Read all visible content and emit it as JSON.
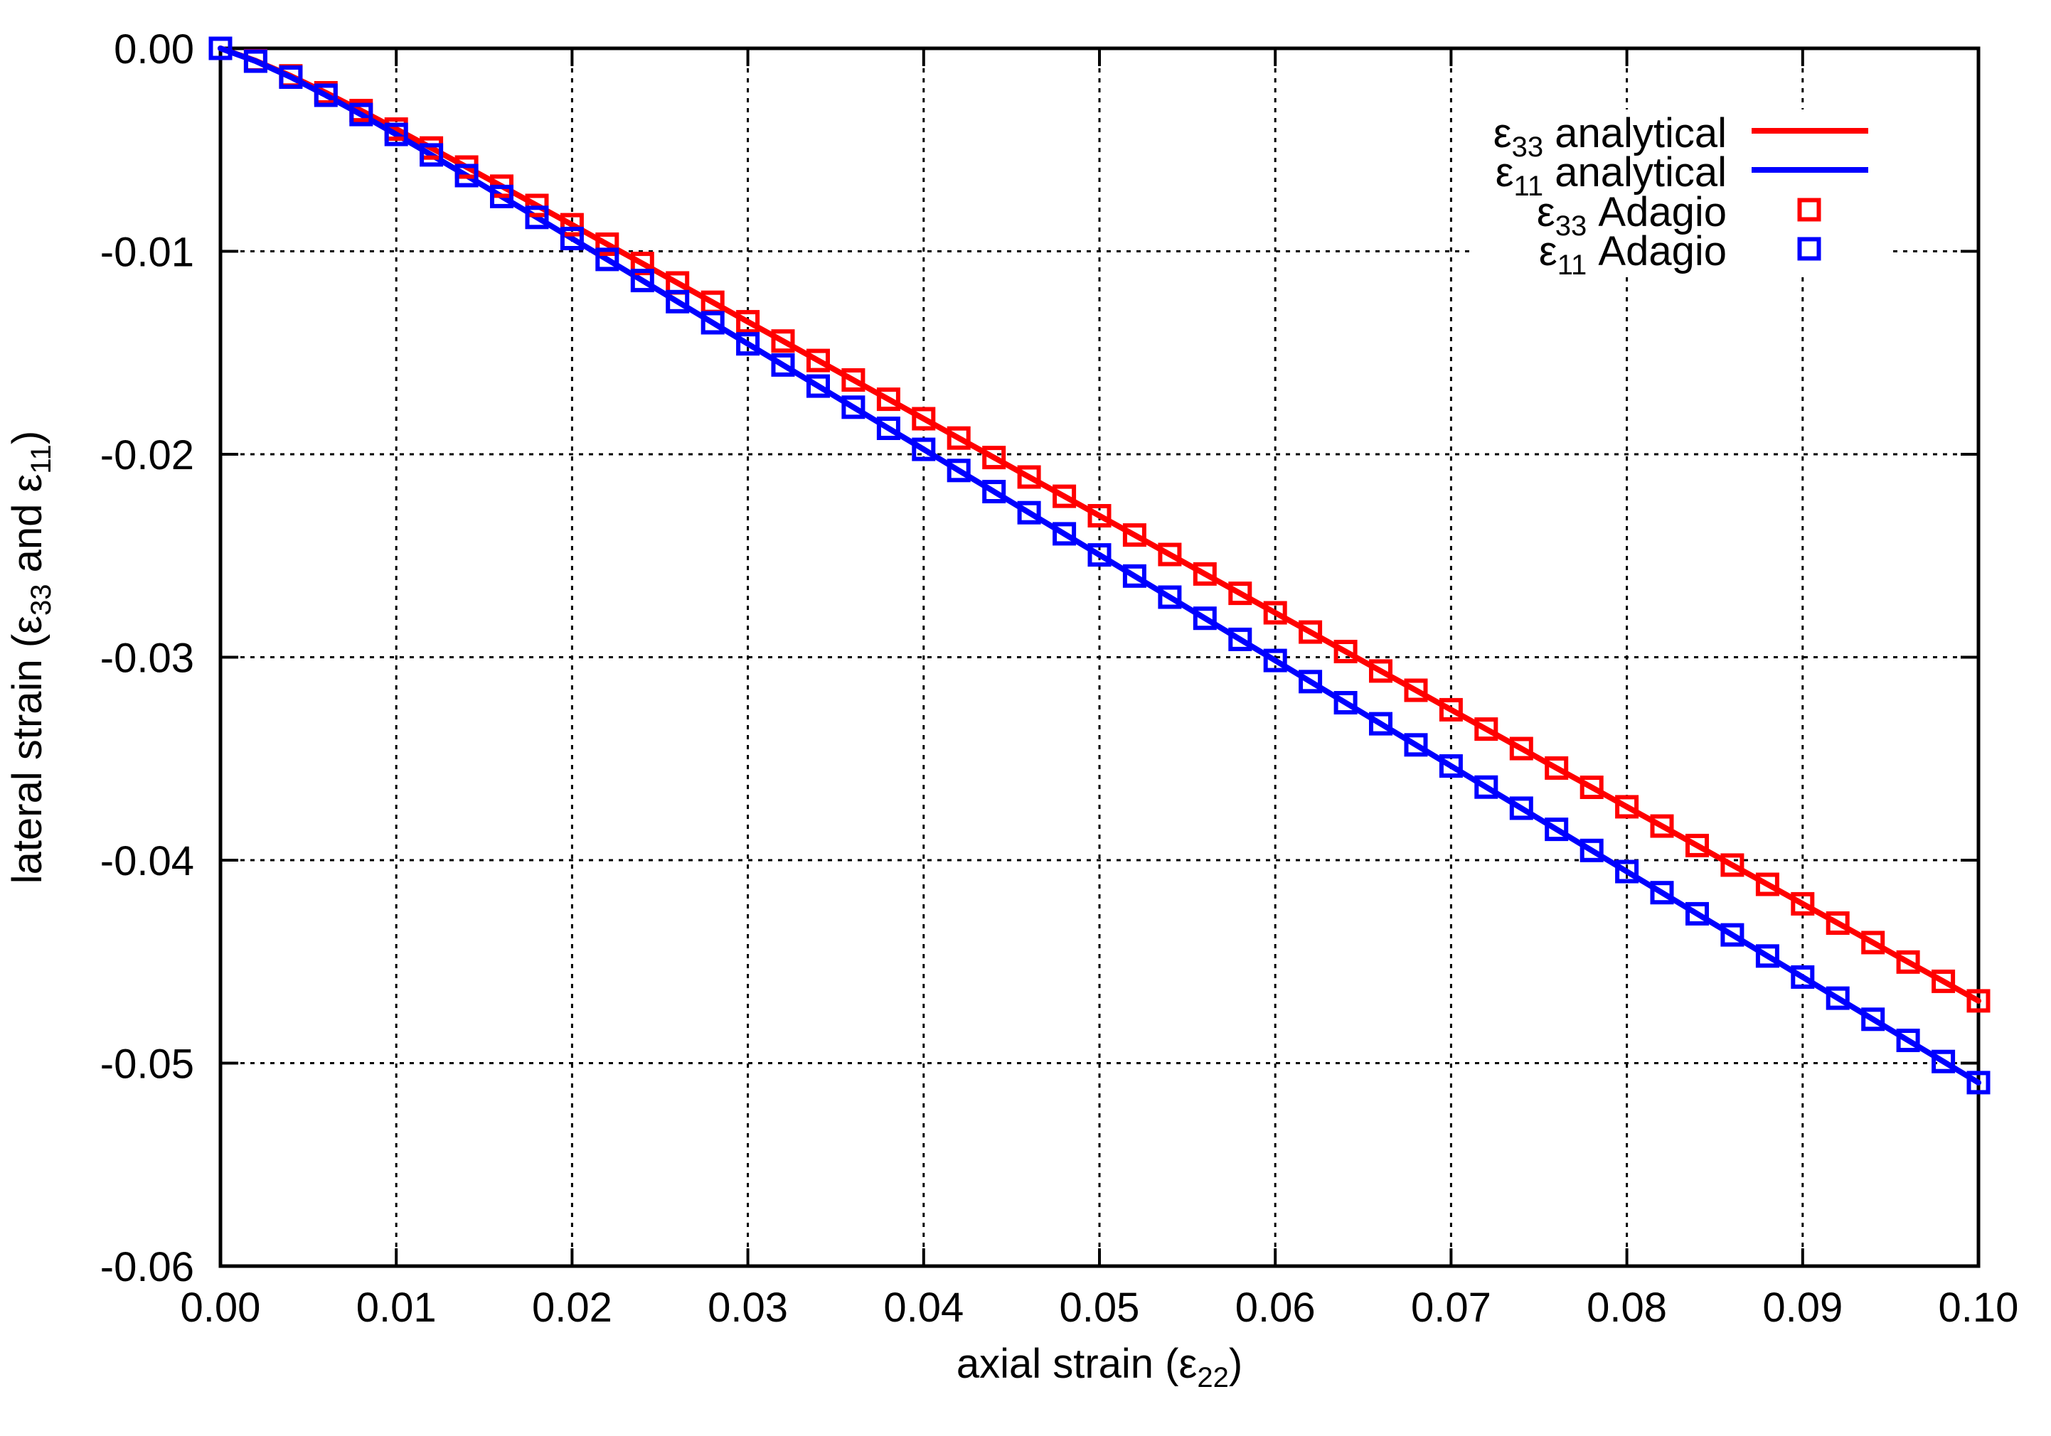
{
  "figure": {
    "background": "#ffffff",
    "text_color": "#000000",
    "grid_color": "#000000"
  },
  "chart_data": {
    "type": "line",
    "title": "",
    "xlabel": "axial strain (ε22)",
    "ylabel": "lateral strain (ε33 and ε11)",
    "xlabel_parts": [
      {
        "t": "axial strain (ε"
      },
      {
        "t": "22",
        "sub": true
      },
      {
        "t": ")"
      }
    ],
    "ylabel_parts": [
      {
        "t": "lateral strain (ε"
      },
      {
        "t": "33",
        "sub": true
      },
      {
        "t": " and ε"
      },
      {
        "t": "11",
        "sub": true
      },
      {
        "t": ")"
      }
    ],
    "xlim": [
      0.0,
      0.1
    ],
    "ylim": [
      -0.06,
      0.0
    ],
    "grid": "dotted",
    "legend_position": "top-right",
    "x_ticks": {
      "values": [
        0.0,
        0.01,
        0.02,
        0.03,
        0.04,
        0.05,
        0.06,
        0.07,
        0.08,
        0.09,
        0.1
      ],
      "labels": [
        "0.00",
        "0.01",
        "0.02",
        "0.03",
        "0.04",
        "0.05",
        "0.06",
        "0.07",
        "0.08",
        "0.09",
        "0.10"
      ]
    },
    "y_ticks": {
      "values": [
        0.0,
        -0.01,
        -0.02,
        -0.03,
        -0.04,
        -0.05,
        -0.06
      ],
      "labels": [
        "0.00",
        "-0.01",
        "-0.02",
        "-0.03",
        "-0.04",
        "-0.05",
        "-0.06"
      ]
    },
    "x": [
      0,
      0.002,
      0.004,
      0.006,
      0.008,
      0.01,
      0.012,
      0.014,
      0.016,
      0.018,
      0.02,
      0.022,
      0.024,
      0.026,
      0.028,
      0.03,
      0.032,
      0.034,
      0.036,
      0.038,
      0.04,
      0.042,
      0.044,
      0.046,
      0.048,
      0.05,
      0.052,
      0.054,
      0.056,
      0.058,
      0.06,
      0.062,
      0.064,
      0.066,
      0.068,
      0.07,
      0.072,
      0.074,
      0.076,
      0.078,
      0.08,
      0.082,
      0.084,
      0.086,
      0.088,
      0.09,
      0.092,
      0.094,
      0.096,
      0.098,
      0.1
    ],
    "value_tables": {
      "e33": [
        0,
        -0.00061,
        -0.00136,
        -0.00219,
        -0.00307,
        -0.00398,
        -0.00491,
        -0.00585,
        -0.00679,
        -0.00774,
        -0.00869,
        -0.00965,
        -0.0106,
        -0.01156,
        -0.01251,
        -0.01347,
        -0.01442,
        -0.01538,
        -0.01634,
        -0.01729,
        -0.01825,
        -0.0192,
        -0.02016,
        -0.02112,
        -0.02207,
        -0.02303,
        -0.02398,
        -0.02494,
        -0.0259,
        -0.02685,
        -0.02781,
        -0.02876,
        -0.02972,
        -0.03068,
        -0.03163,
        -0.03259,
        -0.03354,
        -0.0345,
        -0.03546,
        -0.03641,
        -0.03737,
        -0.03832,
        -0.03928,
        -0.04024,
        -0.04119,
        -0.04215,
        -0.0431,
        -0.04406,
        -0.04502,
        -0.04597,
        -0.04693
      ],
      "e11": [
        0,
        -0.00063,
        -0.00142,
        -0.00231,
        -0.00326,
        -0.00424,
        -0.00525,
        -0.00627,
        -0.0073,
        -0.00833,
        -0.00937,
        -0.0104,
        -0.01144,
        -0.01248,
        -0.01352,
        -0.01456,
        -0.0156,
        -0.01664,
        -0.01768,
        -0.01872,
        -0.01976,
        -0.0208,
        -0.02184,
        -0.02288,
        -0.02392,
        -0.02496,
        -0.026,
        -0.02704,
        -0.02808,
        -0.02912,
        -0.03016,
        -0.0312,
        -0.03224,
        -0.03328,
        -0.03432,
        -0.03536,
        -0.0364,
        -0.03744,
        -0.03848,
        -0.03952,
        -0.04056,
        -0.0416,
        -0.04264,
        -0.04368,
        -0.04472,
        -0.04576,
        -0.0468,
        -0.04784,
        -0.04888,
        -0.04992,
        -0.05096
      ]
    },
    "series": [
      {
        "name": "ε33 analytical",
        "label_parts": [
          {
            "t": "ε"
          },
          {
            "t": "33",
            "sub": true
          },
          {
            "t": " analytical"
          }
        ],
        "color": "#ff0000",
        "style": "line",
        "values_from": "e33"
      },
      {
        "name": "ε11 analytical",
        "label_parts": [
          {
            "t": "ε"
          },
          {
            "t": "11",
            "sub": true
          },
          {
            "t": " analytical"
          }
        ],
        "color": "#0000ff",
        "style": "line",
        "values_from": "e11"
      },
      {
        "name": "ε33 Adagio",
        "label_parts": [
          {
            "t": "ε"
          },
          {
            "t": "33",
            "sub": true
          },
          {
            "t": " Adagio"
          }
        ],
        "color": "#ff0000",
        "style": "square",
        "values_from": "e33"
      },
      {
        "name": "ε11 Adagio",
        "label_parts": [
          {
            "t": "ε"
          },
          {
            "t": "11",
            "sub": true
          },
          {
            "t": " Adagio"
          }
        ],
        "color": "#0000ff",
        "style": "square",
        "values_from": "e11"
      }
    ]
  }
}
